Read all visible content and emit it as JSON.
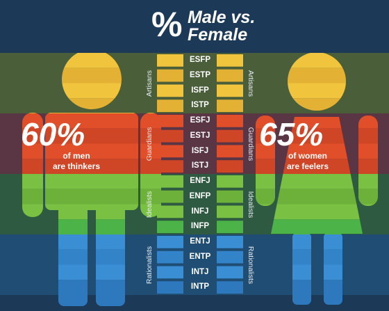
{
  "title": {
    "symbol": "%",
    "line1": "Male vs.",
    "line2": "Female"
  },
  "groups": [
    {
      "name": "Artisans",
      "band_color": "#4b5e3a",
      "types": [
        "ESFP",
        "ESTP",
        "ISFP",
        "ISTP"
      ],
      "type_colors": [
        "#f0c43c",
        "#e3b234",
        "#f0c43c",
        "#e3b234"
      ]
    },
    {
      "name": "Guardians",
      "band_color": "#5a3544",
      "types": [
        "ESFJ",
        "ESTJ",
        "ISFJ",
        "ISTJ"
      ],
      "type_colors": [
        "#e04e2a",
        "#cf4626",
        "#e04e2a",
        "#cf4626"
      ]
    },
    {
      "name": "Idealists",
      "band_color": "#2d5a40",
      "types": [
        "ENFJ",
        "ENFP",
        "INFJ",
        "INFP"
      ],
      "type_colors": [
        "#7ac043",
        "#6db13b",
        "#7ac043",
        "#4cb348"
      ]
    },
    {
      "name": "Rationalists",
      "band_color": "#1f4d73",
      "types": [
        "ENTJ",
        "ENTP",
        "INTJ",
        "INTP"
      ],
      "type_colors": [
        "#3a8fd4",
        "#3383c8",
        "#3a8fd4",
        "#2e78bd"
      ]
    }
  ],
  "male": {
    "percent": "60%",
    "caption_line1": "of men",
    "caption_line2": "are thinkers"
  },
  "female": {
    "percent": "65%",
    "caption_line1": "of women",
    "caption_line2": "are feelers"
  },
  "colors": {
    "background": "#1c3a57",
    "yellow": "#f0c43c",
    "orange": "#e04e2a",
    "green": "#5fb63f",
    "blue": "#3583c9"
  }
}
